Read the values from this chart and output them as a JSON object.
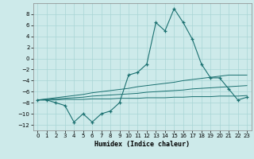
{
  "xlabel": "Humidex (Indice chaleur)",
  "x_values": [
    0,
    1,
    2,
    3,
    4,
    5,
    6,
    7,
    8,
    9,
    10,
    11,
    12,
    13,
    14,
    15,
    16,
    17,
    18,
    19,
    20,
    21,
    22,
    23
  ],
  "main_line": [
    -7.5,
    -7.5,
    -8.0,
    -8.5,
    -11.5,
    -10.0,
    -11.5,
    -10.0,
    -9.5,
    -8.0,
    -3.0,
    -2.5,
    -1.0,
    6.5,
    5.0,
    9.0,
    6.5,
    3.5,
    -1.0,
    -3.5,
    -3.5,
    -5.5,
    -7.5,
    -7.0
  ],
  "linear1": [
    -7.5,
    -7.3,
    -7.1,
    -6.9,
    -6.7,
    -6.5,
    -6.2,
    -6.0,
    -5.8,
    -5.6,
    -5.4,
    -5.1,
    -4.9,
    -4.7,
    -4.5,
    -4.3,
    -4.0,
    -3.8,
    -3.6,
    -3.4,
    -3.2,
    -3.0,
    -3.0,
    -3.0
  ],
  "linear2": [
    -7.5,
    -7.4,
    -7.3,
    -7.2,
    -7.1,
    -7.0,
    -6.8,
    -6.7,
    -6.6,
    -6.5,
    -6.4,
    -6.3,
    -6.1,
    -6.0,
    -5.9,
    -5.8,
    -5.7,
    -5.5,
    -5.4,
    -5.3,
    -5.2,
    -5.1,
    -5.0,
    -4.9
  ],
  "linear3": [
    -7.5,
    -7.5,
    -7.5,
    -7.4,
    -7.4,
    -7.4,
    -7.3,
    -7.3,
    -7.3,
    -7.2,
    -7.2,
    -7.2,
    -7.1,
    -7.1,
    -7.1,
    -7.0,
    -7.0,
    -6.9,
    -6.9,
    -6.9,
    -6.8,
    -6.8,
    -6.8,
    -6.7
  ],
  "bg_color": "#cdeaea",
  "grid_color": "#a8d5d5",
  "line_color": "#1a7070",
  "ylim": [
    -13,
    10
  ],
  "yticks": [
    -12,
    -10,
    -8,
    -6,
    -4,
    -2,
    0,
    2,
    4,
    6,
    8
  ],
  "xticks": [
    0,
    1,
    2,
    3,
    4,
    5,
    6,
    7,
    8,
    9,
    10,
    11,
    12,
    13,
    14,
    15,
    16,
    17,
    18,
    19,
    20,
    21,
    22,
    23
  ],
  "xlabel_fontsize": 6.0,
  "tick_fontsize": 5.0
}
